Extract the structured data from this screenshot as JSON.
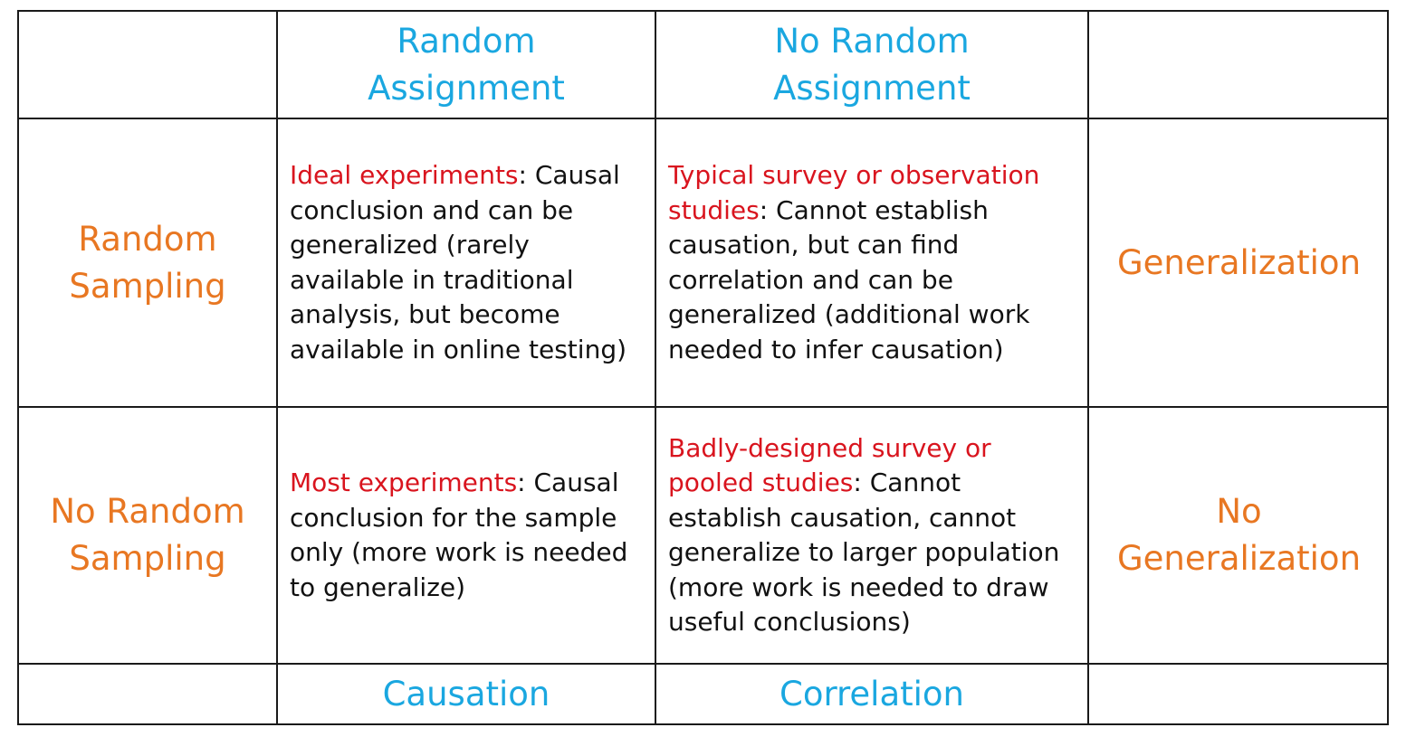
{
  "header": {
    "col1": [
      "Random",
      "Assignment"
    ],
    "col2": [
      "No Random",
      "Assignment"
    ]
  },
  "rows": [
    {
      "label": [
        "Random",
        "Sampling"
      ],
      "cell1": {
        "highlight": "Ideal experiments",
        "text": ": Causal conclusion and can be generalized (rarely available in traditional analysis, but become available in online testing)"
      },
      "cell2": {
        "highlight": "Typical survey or observation studies",
        "text": ": Cannot establish causation, but can find correlation and can be generalized (additional work needed to infer causation)"
      },
      "outcome": [
        "Generalization"
      ]
    },
    {
      "label": [
        "No Random",
        "Sampling"
      ],
      "cell1": {
        "highlight": "Most experiments",
        "text": ": Causal conclusion for the sample only (more work is needed to generalize)"
      },
      "cell2": {
        "highlight": "Badly-designed survey or pooled studies",
        "text": ": Cannot establish causation, cannot generalize to larger population (more work is needed to draw useful conclusions)"
      },
      "outcome": [
        "No",
        "Generalization"
      ]
    }
  ],
  "footer": {
    "col1": "Causation",
    "col2": "Correlation"
  },
  "colors": {
    "header": "#1aa7e0",
    "side": "#e87722",
    "highlight": "#d9141e",
    "text": "#111111",
    "border": "#1a1a1a"
  }
}
